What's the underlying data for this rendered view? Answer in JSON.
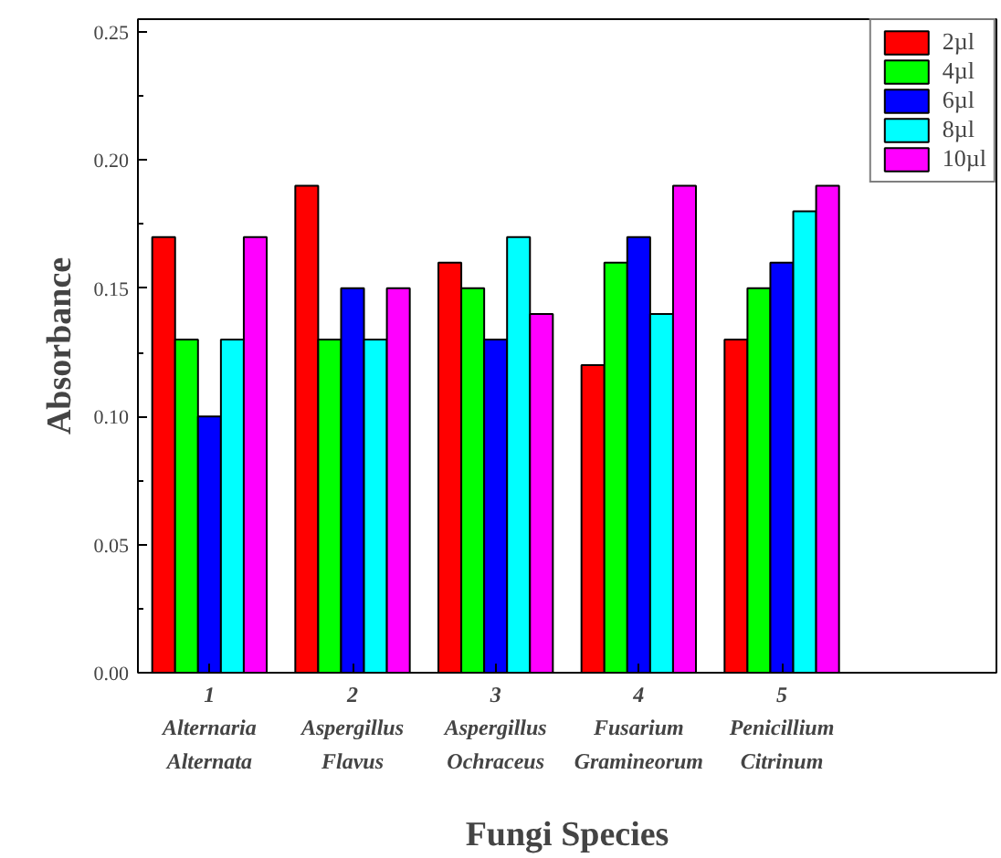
{
  "chart_data": {
    "type": "bar",
    "xlabel": "Fungi Species",
    "ylabel": "Absorbance",
    "categories": [
      "1\nAlternaria\nAlternata",
      "2\nAspergillus\nFlavus",
      "3\nAspergillus\nOchraceus",
      "4\nFusarium\nGramineorum",
      "5\nPenicillium\nCitrinum",
      null
    ],
    "ylim": [
      0,
      0.255
    ],
    "yticks": [
      {
        "value": 0,
        "label": "0.00"
      },
      {
        "value": 0.05,
        "label": "0.05"
      },
      {
        "value": 0.1,
        "label": "0.10"
      },
      {
        "value": 0.15,
        "label": "0.15"
      },
      {
        "value": 0.2,
        "label": "0.20"
      },
      {
        "value": 0.25,
        "label": "0.25"
      }
    ],
    "series": [
      {
        "name": "2µl",
        "color": "#ff0000",
        "values": [
          0.17,
          0.19,
          0.16,
          0.12,
          0.13,
          null
        ]
      },
      {
        "name": "4µl",
        "color": "#00ff00",
        "values": [
          0.13,
          0.13,
          0.15,
          0.16,
          0.15,
          null
        ]
      },
      {
        "name": "6µl",
        "color": "#0000ff",
        "values": [
          0.1,
          0.15,
          0.13,
          0.17,
          0.16,
          null
        ]
      },
      {
        "name": "8µl",
        "color": "#00ffff",
        "values": [
          0.13,
          0.13,
          0.17,
          0.14,
          0.18,
          null
        ]
      },
      {
        "name": "10µl",
        "color": "#ff00ff",
        "values": [
          0.17,
          0.15,
          0.14,
          0.19,
          0.19,
          null
        ]
      }
    ],
    "grid": false,
    "legend": "top right"
  }
}
